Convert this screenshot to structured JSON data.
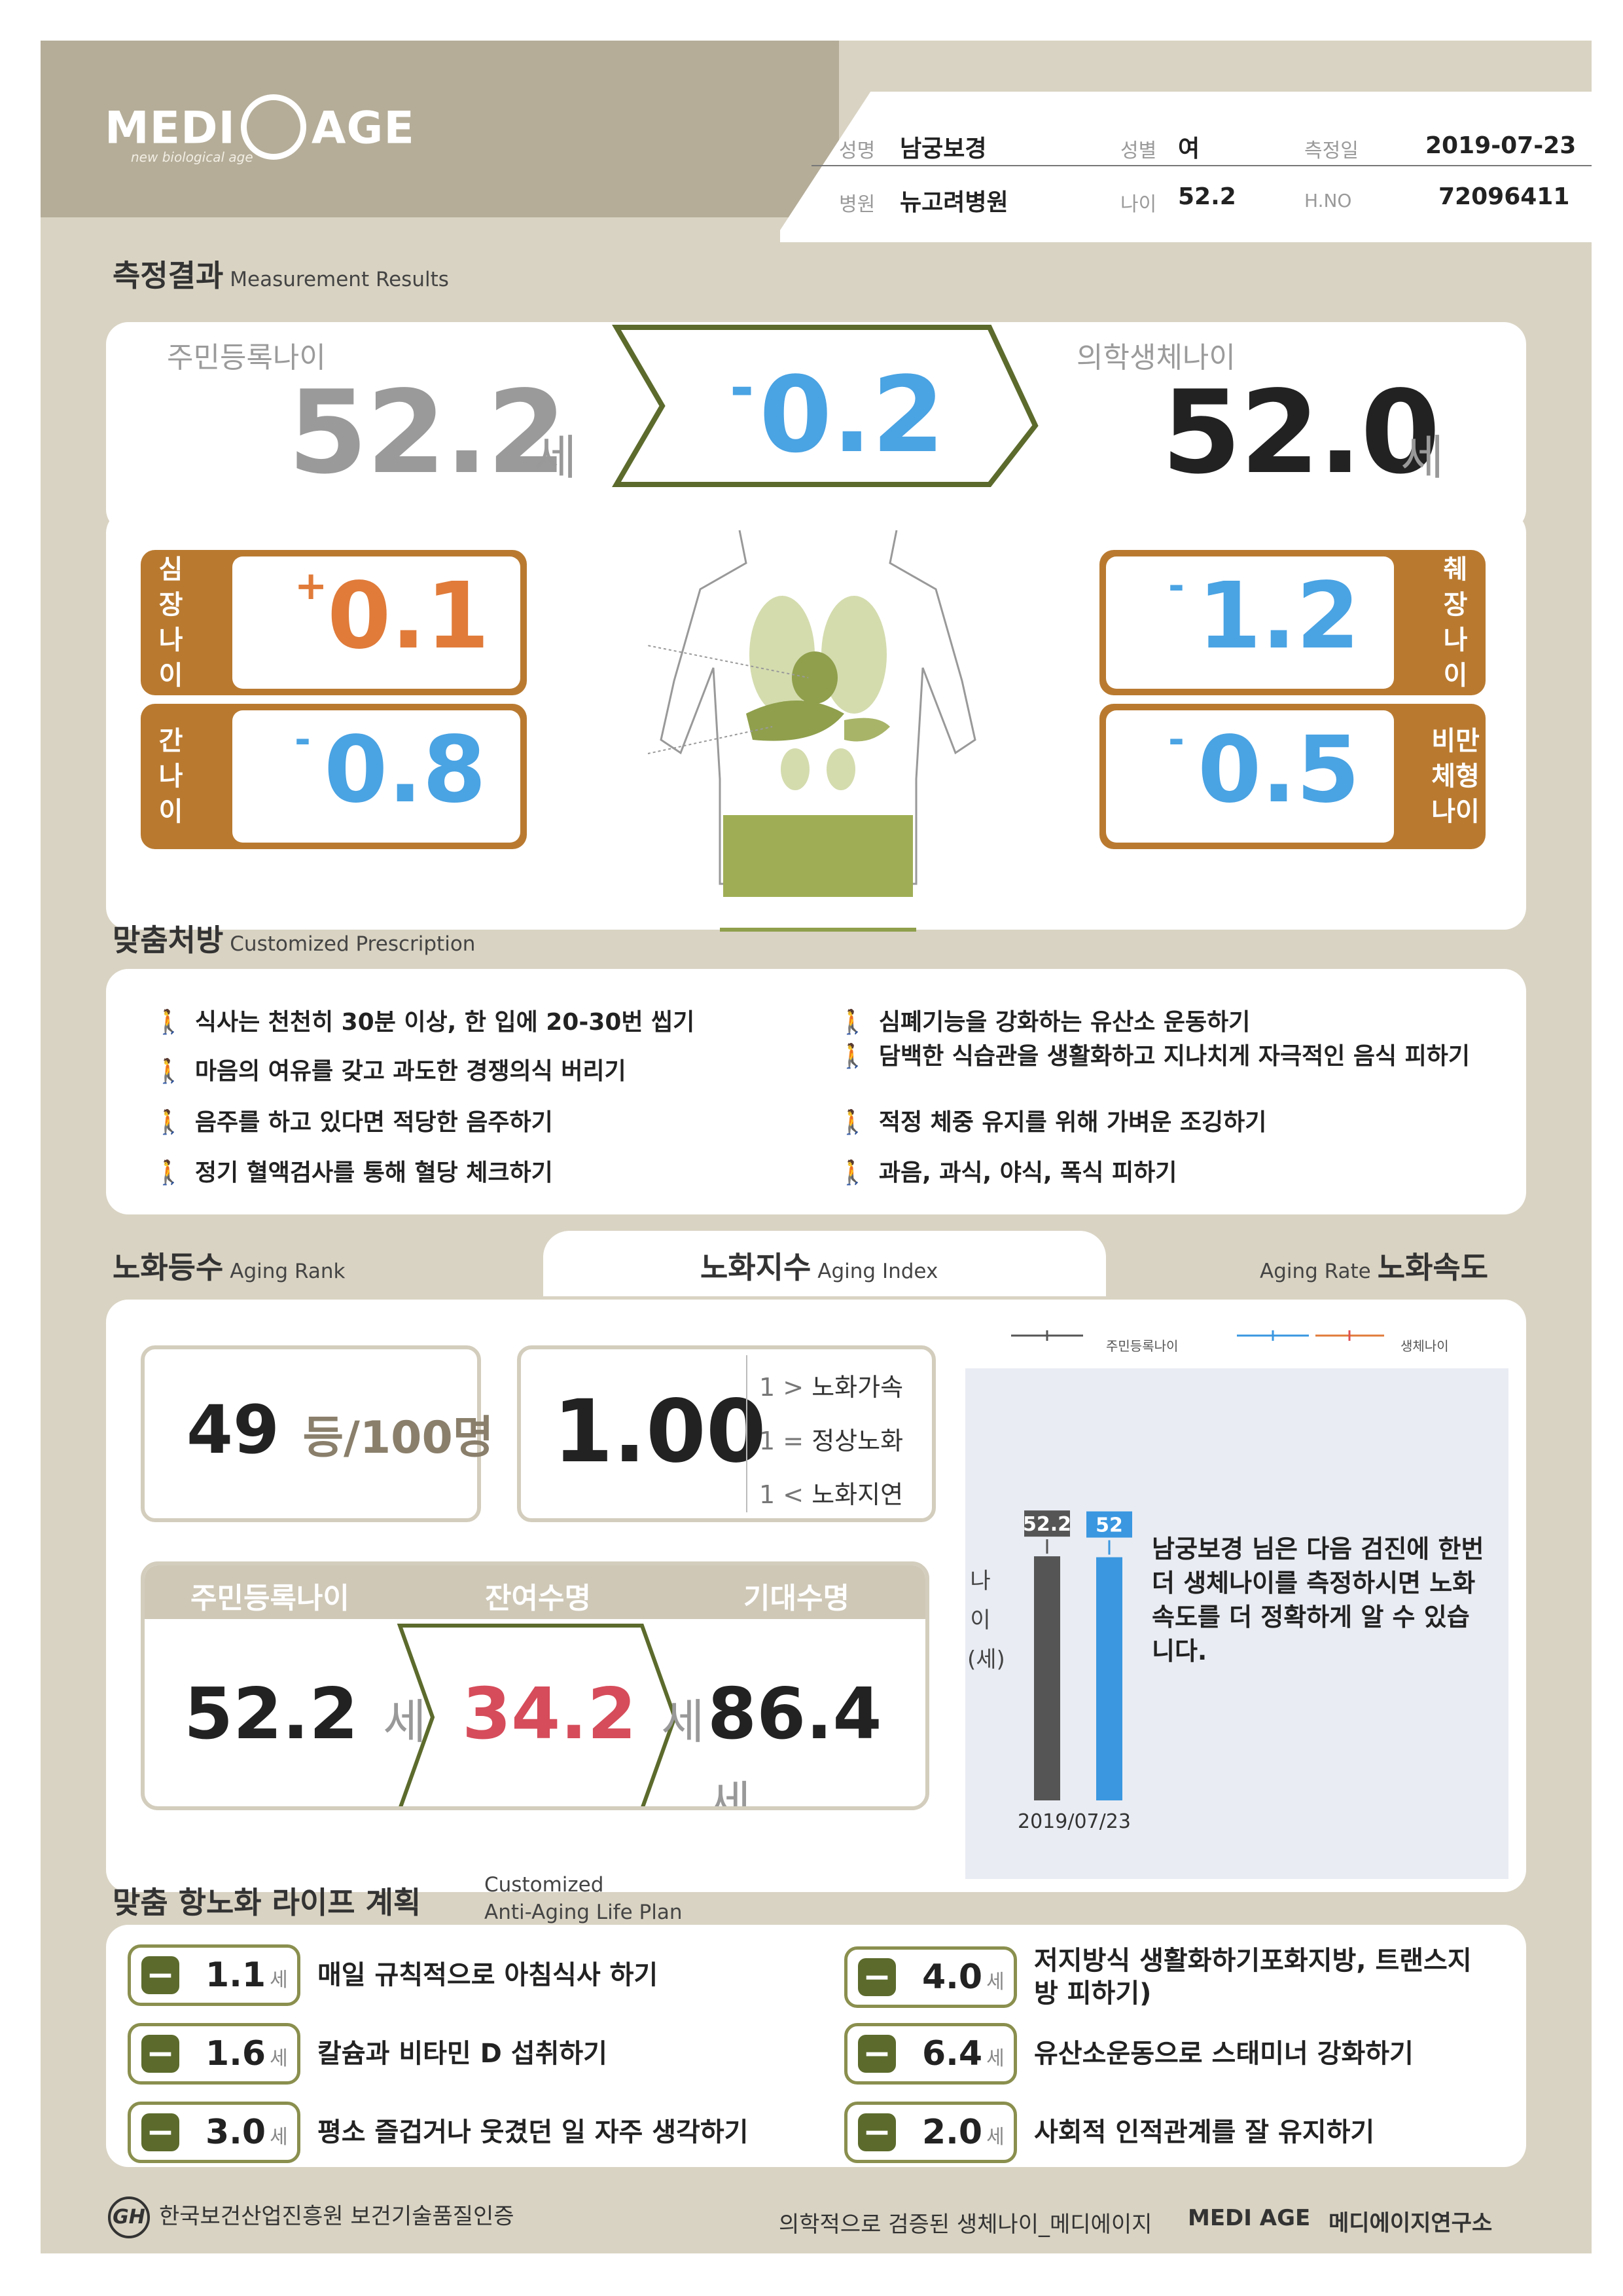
{
  "header": {
    "logo_left": "MEDI",
    "logo_right": "AGE",
    "logo_sub": "new biological age",
    "name_label": "성명",
    "name": "남궁보경",
    "sex_label": "성별",
    "sex": "여",
    "date_label": "측정일",
    "date": "2019-07-23",
    "hospital_label": "병원",
    "hospital": "뉴고려병원",
    "age_label": "나이",
    "age": "52.2",
    "hno_label": "H.NO",
    "hno": "72096411"
  },
  "measurement": {
    "title": "측정결과",
    "title_en": "Measurement Results",
    "resident_age_label": "주민등록나이",
    "resident_age": "52.2",
    "unit": "세",
    "diff_sign": "-",
    "diff": "0.2",
    "bio_age_label": "의학생체나이",
    "bio_age": "52.0"
  },
  "organs": {
    "heart": {
      "label": [
        "심",
        "장",
        "나",
        "이"
      ],
      "sign": "+",
      "value": "0.1",
      "color": "#e07b3a"
    },
    "liver": {
      "label": [
        "간",
        "나",
        "이"
      ],
      "sign": "-",
      "value": "0.8",
      "color": "#4aa3e3"
    },
    "pancreas": {
      "label": [
        "췌",
        "장",
        "나",
        "이"
      ],
      "sign": "-",
      "value": "1.2",
      "color": "#4aa3e3"
    },
    "obesity": {
      "label": [
        "비만",
        "체형",
        "나이"
      ],
      "sign": "-",
      "value": "0.5",
      "color": "#4aa3e3"
    }
  },
  "prescription": {
    "title": "맞춤처방",
    "title_en": "Customized Prescription",
    "left": [
      "식사는 천천히 30분 이상, 한 입에 20-30번 씹기",
      "마음의 여유를 갖고 과도한 경쟁의식 버리기",
      "음주를 하고 있다면 적당한 음주하기",
      "정기 혈액검사를 통해 혈당 체크하기"
    ],
    "right": [
      "심폐기능을 강화하는 유산소 운동하기",
      "담백한 식습관을 생활화하고 지나치게 자극적인 음식 피하기",
      "적정 체중 유지를 위해 가벼운 조깅하기",
      "과음, 과식, 야식, 폭식 피하기"
    ]
  },
  "aging": {
    "rank_title": "노화등수",
    "rank_title_en": "Aging Rank",
    "index_title": "노화지수",
    "index_title_en": "Aging Index",
    "rate_title": "노화속도",
    "rate_title_en": "Aging Rate",
    "rank_value": "49",
    "rank_unit": "등/100명",
    "index_value": "1.00",
    "index_legend": [
      {
        "key": "1 >",
        "text": "노화가속"
      },
      {
        "key": "1 =",
        "text": "정상노화"
      },
      {
        "key": "1 <",
        "text": "노화지연"
      }
    ],
    "life": {
      "h1": "주민등록나이",
      "h2": "잔여수명",
      "h3": "기대수명",
      "v1": "52.2",
      "v2": "34.2",
      "v3": "86.4",
      "unit": "세"
    }
  },
  "chart_data": {
    "type": "bar",
    "categories": [
      "2019/07/23"
    ],
    "series": [
      {
        "name": "주민등록나이",
        "values": [
          52.2
        ],
        "label": "52.2",
        "color": "#555555"
      },
      {
        "name": "생체나이",
        "values": [
          52.0
        ],
        "label": "52",
        "color": "#3a97e0"
      }
    ],
    "ylabel": "나이(세)",
    "note": "남궁보경 님은 다음 검진에 한번 더 생체나이를 측정하시면 노화속도를 더 정확하게 알 수 있습니다."
  },
  "plan": {
    "title": "맞춤 항노화 라이프 계획",
    "title_en_1": "Customized",
    "title_en_2": "Anti-Aging Life Plan",
    "unit": "세",
    "items": [
      {
        "years": "1.1",
        "text": "매일 규칙적으로 아침식사 하기"
      },
      {
        "years": "1.6",
        "text": "칼슘과 비타민 D 섭취하기"
      },
      {
        "years": "3.0",
        "text": "평소 즐겁거나 웃겼던 일 자주 생각하기"
      },
      {
        "years": "4.0",
        "text": "저지방식 생활화하기포화지방, 트랜스지방 피하기)"
      },
      {
        "years": "6.4",
        "text": "유산소운동으로 스태미너 강화하기"
      },
      {
        "years": "2.0",
        "text": "사회적 인적관계를 잘 유지하기"
      }
    ]
  },
  "footer": {
    "cert_mark": "GH",
    "cert": "한국보건산업진흥원 보건기술품질인증",
    "right": "의학적으로 검증된 생체나이_메디에이지",
    "logo": "MEDI AGE",
    "org": "메디에이지연구소"
  }
}
